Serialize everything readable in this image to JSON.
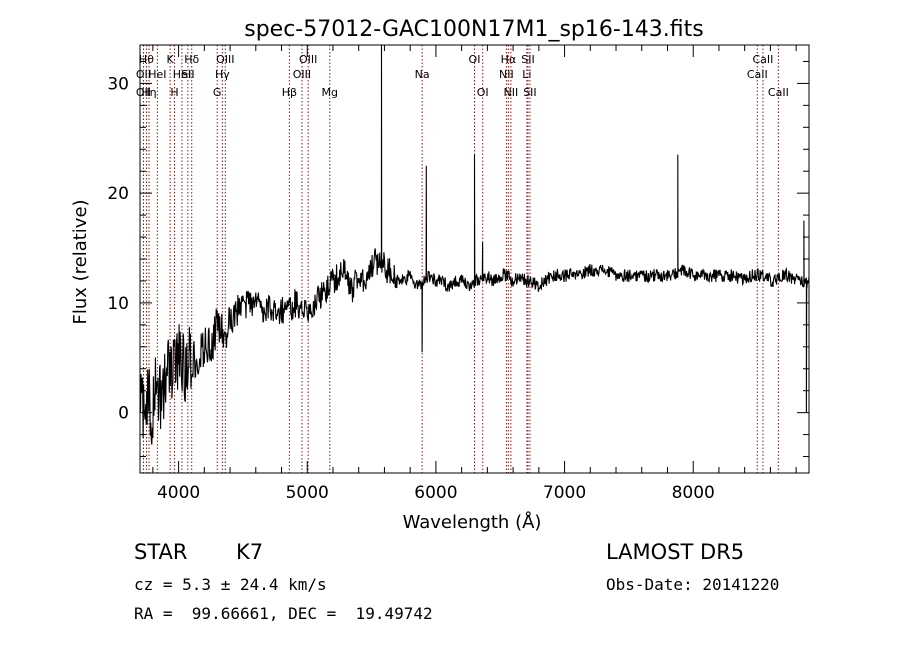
{
  "chart_data": {
    "type": "line",
    "title": "spec-57012-GAC100N17M1_sp16-143.fits",
    "xlabel": "Wavelength (Å)",
    "ylabel": "Flux (relative)",
    "xlim": [
      3700,
      8900
    ],
    "ylim": [
      -5.5,
      33.5
    ],
    "xticks": [
      4000,
      5000,
      6000,
      7000,
      8000
    ],
    "yticks": [
      0,
      10,
      20,
      30
    ],
    "grid": false,
    "line_color": "#000000",
    "marker_color": "#8b1a1a",
    "spectrum": {
      "x": [
        3700,
        3730,
        3760,
        3790,
        3820,
        3850,
        3880,
        3910,
        3940,
        3970,
        4000,
        4050,
        4100,
        4150,
        4200,
        4250,
        4300,
        4350,
        4400,
        4450,
        4500,
        4550,
        4600,
        4650,
        4700,
        4750,
        4800,
        4850,
        4900,
        4950,
        5000,
        5050,
        5100,
        5150,
        5200,
        5250,
        5300,
        5350,
        5400,
        5450,
        5500,
        5530,
        5560,
        5590,
        5620,
        5650,
        5680,
        5700,
        5750,
        5800,
        5850,
        5900,
        5950,
        6000,
        6050,
        6100,
        6150,
        6200,
        6250,
        6300,
        6350,
        6400,
        6450,
        6500,
        6550,
        6600,
        6650,
        6700,
        6750,
        6800,
        6850,
        6900,
        7000,
        7100,
        7200,
        7300,
        7400,
        7500,
        7600,
        7700,
        7800,
        7850,
        7900,
        8000,
        8100,
        8200,
        8300,
        8400,
        8450,
        8500,
        8550,
        8600,
        8650,
        8700,
        8750,
        8780,
        8820,
        8860,
        8900
      ],
      "y": [
        1,
        0,
        2,
        -1,
        3,
        1,
        2,
        4,
        3,
        4,
        5,
        4,
        5,
        5,
        6,
        6,
        8,
        7,
        8,
        9,
        9.5,
        10,
        10,
        9.5,
        9.5,
        9,
        9.5,
        9,
        10,
        9.5,
        9.5,
        10,
        10.5,
        11,
        12,
        12.5,
        13,
        11,
        13,
        12,
        13,
        14,
        13.5,
        14,
        13,
        13,
        12.5,
        12,
        12,
        12.5,
        11.5,
        12,
        12.5,
        12,
        12,
        11.5,
        12,
        12,
        11.5,
        12,
        12,
        12.5,
        12,
        12.5,
        12.5,
        12,
        12.5,
        12,
        12,
        11.5,
        12,
        12.5,
        12.5,
        12.5,
        13,
        13,
        12.5,
        12.5,
        12.5,
        12.5,
        12.5,
        12.5,
        13,
        12.5,
        12.5,
        12.5,
        12.5,
        12,
        12.5,
        12.5,
        12.5,
        12,
        12,
        12.5,
        12.5,
        12,
        12.5,
        11.5,
        12
      ]
    },
    "peaks": [
      {
        "x": 5577,
        "y": 33.5
      },
      {
        "x": 5893,
        "y": 5.5
      },
      {
        "x": 5925,
        "y": 22.5
      },
      {
        "x": 6300,
        "y": 23.5
      },
      {
        "x": 6363,
        "y": 15.5
      },
      {
        "x": 7880,
        "y": 23.5
      },
      {
        "x": 8860,
        "y": 17.5
      },
      {
        "x": 8880,
        "y": 0
      }
    ],
    "lines": [
      {
        "x": 3727,
        "label": "OII",
        "row": 2
      },
      {
        "x": 3727,
        "label": "OII",
        "row": 3
      },
      {
        "x": 3750,
        "label": "Hθ",
        "row": 1
      },
      {
        "x": 3770,
        "label": "Hη",
        "row": 3
      },
      {
        "x": 3835,
        "label": "HeI",
        "row": 2
      },
      {
        "x": 3934,
        "label": "K",
        "row": 1
      },
      {
        "x": 3968,
        "label": "H",
        "row": 3
      },
      {
        "x": 4026,
        "label": "HeI",
        "row": 2
      },
      {
        "x": 4072,
        "label": "SII",
        "row": 2
      },
      {
        "x": 4102,
        "label": "Hδ",
        "row": 1
      },
      {
        "x": 4300,
        "label": "G",
        "row": 3
      },
      {
        "x": 4340,
        "label": "Hγ",
        "row": 2
      },
      {
        "x": 4363,
        "label": "OIII",
        "row": 1
      },
      {
        "x": 4861,
        "label": "Hβ",
        "row": 3
      },
      {
        "x": 4959,
        "label": "OIII",
        "row": 2
      },
      {
        "x": 5007,
        "label": "OIII",
        "row": 1
      },
      {
        "x": 5175,
        "label": "Mg",
        "row": 3
      },
      {
        "x": 5893,
        "label": "Na",
        "row": 2
      },
      {
        "x": 6300,
        "label": "OI",
        "row": 1
      },
      {
        "x": 6364,
        "label": "OI",
        "row": 3
      },
      {
        "x": 6548,
        "label": "NII",
        "row": 2
      },
      {
        "x": 6563,
        "label": "Hα",
        "row": 1
      },
      {
        "x": 6583,
        "label": "NII",
        "row": 3
      },
      {
        "x": 6707,
        "label": "Li",
        "row": 2
      },
      {
        "x": 6716,
        "label": "SII",
        "row": 1
      },
      {
        "x": 6731,
        "label": "SII",
        "row": 3
      },
      {
        "x": 8498,
        "label": "CaII",
        "row": 2
      },
      {
        "x": 8542,
        "label": "CaII",
        "row": 1
      },
      {
        "x": 8662,
        "label": "CaII",
        "row": 3
      }
    ]
  },
  "info": {
    "object_class": "STAR",
    "subclass": "K7",
    "cz": "cz = 5.3 ± 24.4 km/s",
    "coords": "RA =  99.66661, DEC =  19.49742",
    "survey": "LAMOST DR5",
    "obs_date": "Obs-Date: 20141220"
  }
}
